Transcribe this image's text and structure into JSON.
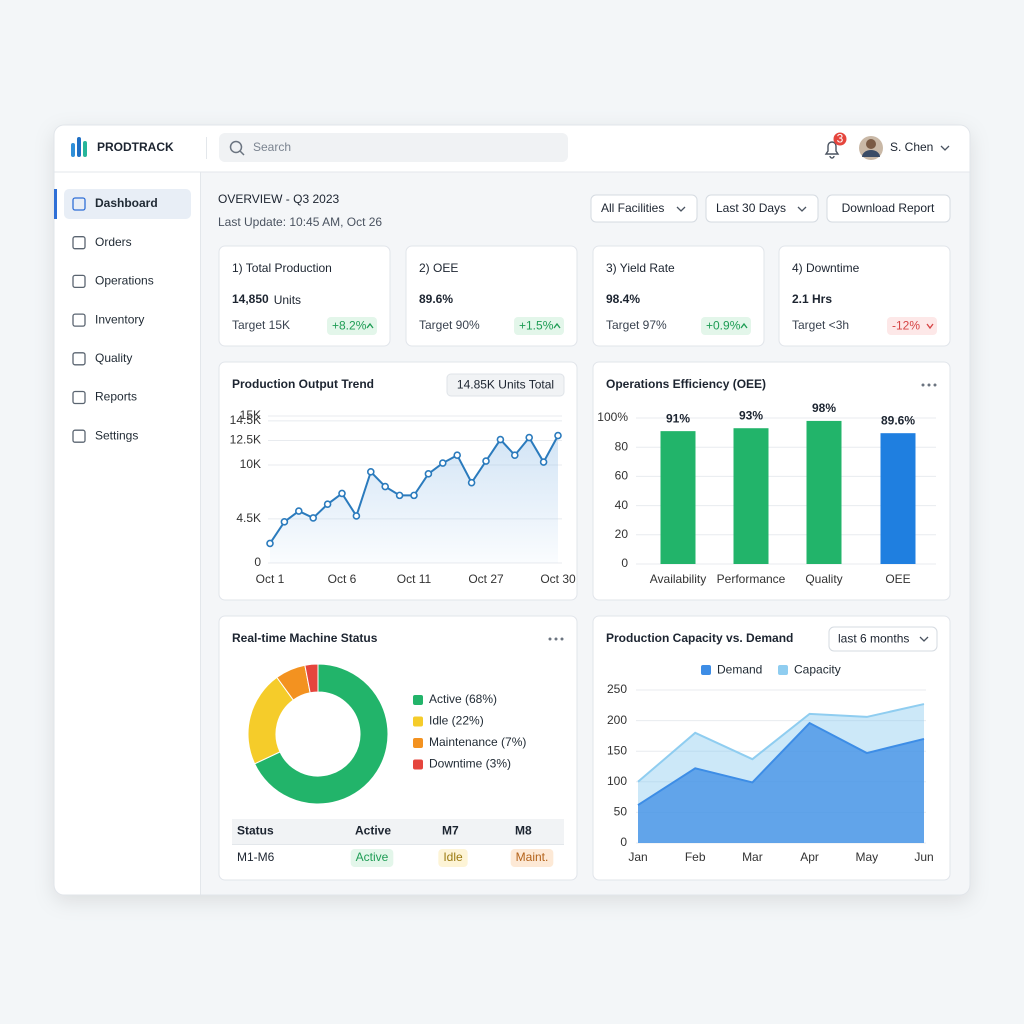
{
  "header": {
    "brand": "PRODTRACK",
    "search": "Search",
    "notifications": "3",
    "user": "S. Chen"
  },
  "sidebar": {
    "items": [
      "Dashboard",
      "Orders",
      "Operations",
      "Inventory",
      "Quality",
      "Reports",
      "Settings"
    ],
    "active": 0
  },
  "overview": {
    "title": "OVERVIEW - Q3 2023",
    "updated": "Last Update: 10:45 AM, Oct 26",
    "filters": [
      "All Facilities",
      "Last 30 Days"
    ],
    "action": "Download Report"
  },
  "kpis": [
    {
      "title": "1) Total Production",
      "value": "14,850",
      "unit": "Units",
      "target": "Target 15K",
      "change": "+8.2%",
      "trend": "up"
    },
    {
      "title": "2) OEE",
      "value": "89.6%",
      "target": "Target 90%",
      "change": "+1.5%",
      "trend": "up"
    },
    {
      "title": "3) Yield Rate",
      "value": "98.4%",
      "target": "Target 97%",
      "change": "+0.9%",
      "trend": "up"
    },
    {
      "title": "4) Downtime",
      "value": "2.1 Hrs",
      "target": "Target <3h",
      "change": "-12%",
      "trend": "down"
    }
  ],
  "chart_data": [
    {
      "type": "line",
      "title": "Production Output Trend",
      "badge": "14.85K Units Total",
      "categories": [
        "Oct 1",
        null,
        null,
        null,
        null,
        "Oct 6",
        null,
        null,
        null,
        null,
        "Oct 11",
        null,
        null,
        null,
        null,
        "Oct 27",
        null,
        null,
        null,
        null,
        "Oct 30"
      ],
      "values": [
        2000,
        4200,
        5300,
        4600,
        6000,
        7100,
        4800,
        9300,
        7800,
        6900,
        6900,
        9100,
        10200,
        11000,
        8200,
        10400,
        12600,
        11000,
        12800,
        10300,
        13000
      ],
      "color": "#2b7bbd",
      "ylim": [
        0,
        15000
      ],
      "yticks": [
        0,
        {
          "value": 4500,
          "label": "4.5K"
        },
        {
          "value": 10000,
          "label": "10K"
        },
        {
          "value": 12500,
          "label": "12.5K"
        },
        {
          "value": 15000,
          "label": "15K"
        },
        {
          "value": 14500,
          "label": "14.5K"
        }
      ],
      "grid": true
    },
    {
      "type": "bar",
      "title": "Operations Efficiency (OEE)",
      "categories": [
        "Availability",
        "Performance",
        "Quality",
        "OEE"
      ],
      "values": [
        91,
        93,
        98,
        89.6
      ],
      "value_labels": [
        "91%",
        "93%",
        "98%",
        "89.6%"
      ],
      "colors": [
        "#22b46a",
        "#22b46a",
        "#22b46a",
        "#1f7fe0"
      ],
      "ylim": [
        0,
        100
      ],
      "yticks": [
        0,
        20,
        40,
        60,
        80,
        {
          "value": 100,
          "label": "100%"
        }
      ],
      "grid": true
    },
    {
      "type": "pie",
      "title": "Real-time Machine Status",
      "donut": true,
      "categories": [
        "Active (68%)",
        "Idle (22%)",
        "Maintenance (7%)",
        "Downtime (3%)"
      ],
      "values": [
        68,
        22,
        7,
        3
      ],
      "colors": [
        "#22b46a",
        "#f5cc2a",
        "#f39220",
        "#e5453d"
      ]
    },
    {
      "type": "area",
      "title": "Production Capacity vs. Demand",
      "range": "last 6 months",
      "categories": [
        "Jan",
        "Feb",
        "Mar",
        "Apr",
        "May",
        "Jun"
      ],
      "series": [
        {
          "name": "Demand",
          "color": "#3d8de6",
          "values": [
            62,
            122,
            99,
            196,
            147,
            170
          ]
        },
        {
          "name": "Capacity",
          "color": "#8fcdf0",
          "values": [
            100,
            180,
            137,
            211,
            206,
            227
          ]
        }
      ],
      "ylim": [
        0,
        250
      ],
      "yticks": [
        0,
        50,
        100,
        150,
        200,
        250
      ],
      "grid": true
    }
  ],
  "machine_table": {
    "headers": [
      "Status",
      "Active",
      "M7",
      "M8"
    ],
    "rows": [
      [
        "M1-M6",
        "Active",
        "Idle",
        "Maint."
      ]
    ]
  }
}
